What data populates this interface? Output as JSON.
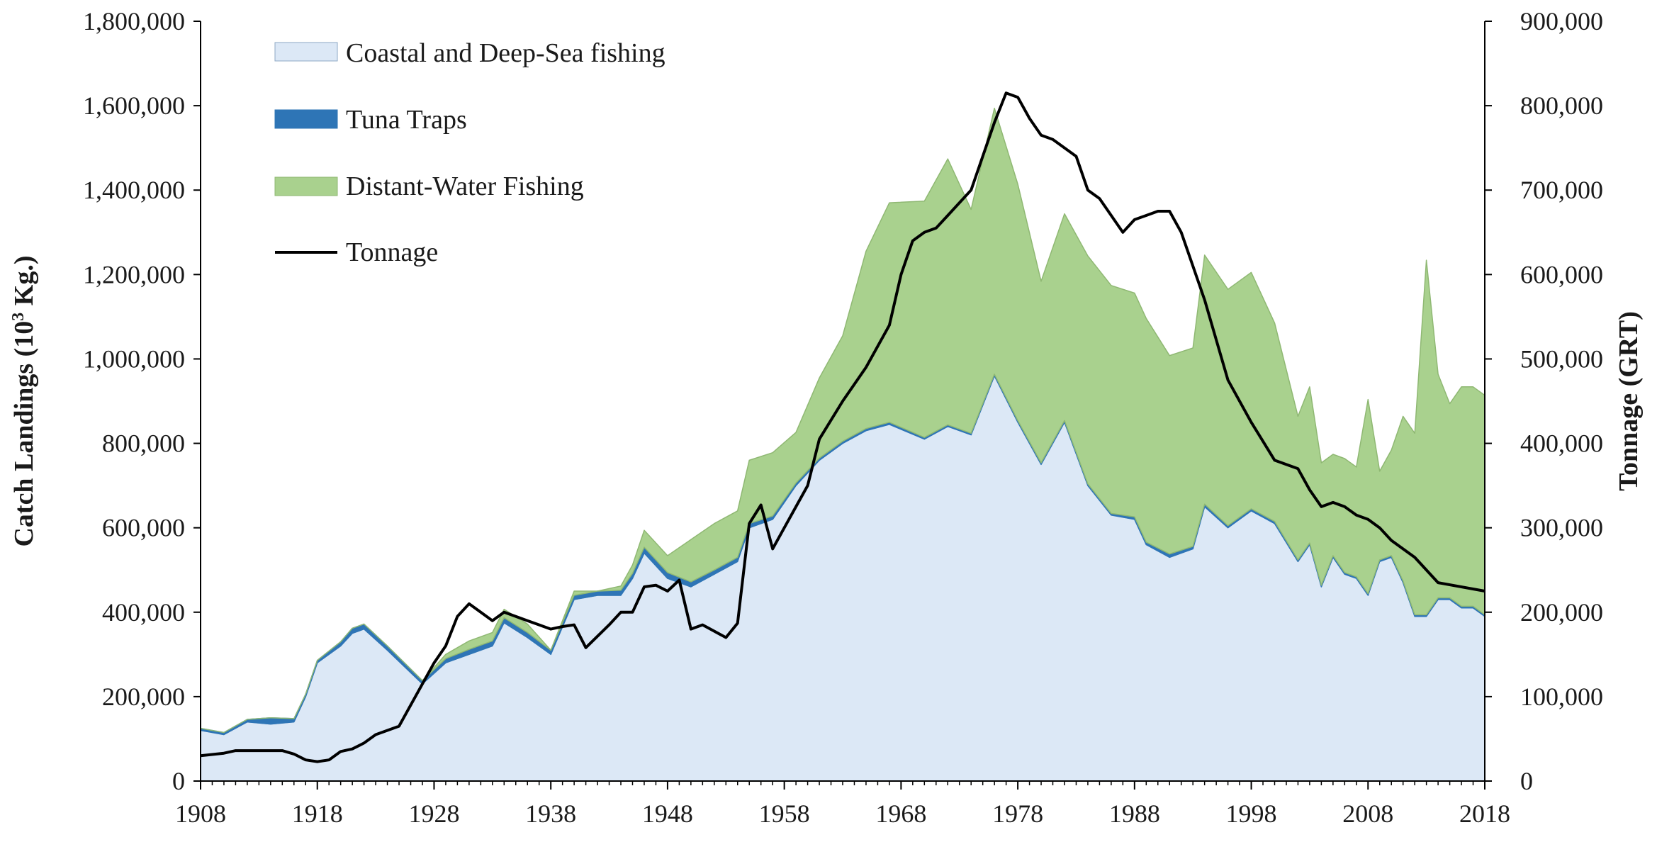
{
  "chart_data": {
    "type": "area",
    "title": "",
    "xlabel": "",
    "ylabel": "Catch Landings (10³ Kg.)",
    "ylabel_base": "Catch Landings (10",
    "ylabel_sup": "3",
    "ylabel_tail": " Kg.)",
    "y2label": "Tonnage (GRT)",
    "xlim": [
      1908,
      2018
    ],
    "ylim": [
      0,
      1800000
    ],
    "y2lim": [
      0,
      900000
    ],
    "x_ticks": [
      1908,
      1918,
      1928,
      1938,
      1948,
      1958,
      1968,
      1978,
      1988,
      1998,
      2008,
      2018
    ],
    "y_ticks": [
      0,
      200000,
      400000,
      600000,
      800000,
      1000000,
      1200000,
      1400000,
      1600000,
      1800000
    ],
    "y2_ticks": [
      0,
      100000,
      200000,
      300000,
      400000,
      500000,
      600000,
      700000,
      800000,
      900000
    ],
    "legend": [
      "Coastal and Deep-Sea fishing",
      "Tuna Traps",
      "Distant-Water Fishing",
      "Tonnage"
    ],
    "legend_position": "top-left",
    "colors": {
      "coastal": "#dce8f6",
      "coastal_edge": "#8ea8c4",
      "tuna": "#2e75b6",
      "distant": "#a9d18e",
      "distant_edge": "#8fb873",
      "tonnage": "#000000",
      "axis": "#000000"
    },
    "series": [
      {
        "name": "Coastal and Deep-Sea fishing",
        "kind": "stacked-area",
        "x": [
          1908,
          1910,
          1912,
          1914,
          1916,
          1917,
          1918,
          1919,
          1920,
          1921,
          1922,
          1924,
          1927,
          1929,
          1931,
          1933,
          1934,
          1936,
          1938,
          1940,
          1942,
          1944,
          1945,
          1946,
          1948,
          1950,
          1952,
          1954,
          1955,
          1957,
          1959,
          1961,
          1963,
          1965,
          1967,
          1970,
          1972,
          1974,
          1976,
          1978,
          1980,
          1982,
          1984,
          1986,
          1988,
          1989,
          1991,
          1993,
          1994,
          1996,
          1998,
          2000,
          2002,
          2003,
          2004,
          2005,
          2006,
          2007,
          2008,
          2009,
          2010,
          2011,
          2012,
          2013,
          2014,
          2015,
          2016,
          2017,
          2018
        ],
        "values": [
          120000,
          110000,
          140000,
          135000,
          140000,
          200000,
          280000,
          300000,
          320000,
          350000,
          360000,
          310000,
          230000,
          280000,
          300000,
          320000,
          375000,
          340000,
          300000,
          430000,
          440000,
          440000,
          480000,
          540000,
          480000,
          460000,
          490000,
          520000,
          600000,
          620000,
          700000,
          760000,
          800000,
          830000,
          845000,
          810000,
          840000,
          820000,
          960000,
          850000,
          750000,
          850000,
          700000,
          630000,
          620000,
          560000,
          530000,
          550000,
          650000,
          600000,
          640000,
          610000,
          520000,
          560000,
          460000,
          530000,
          490000,
          480000,
          440000,
          520000,
          530000,
          470000,
          390000,
          390000,
          430000,
          430000,
          410000,
          410000,
          390000
        ]
      },
      {
        "name": "Tuna Traps",
        "kind": "stacked-area",
        "x": [
          1908,
          1910,
          1912,
          1914,
          1916,
          1917,
          1918,
          1919,
          1920,
          1921,
          1922,
          1924,
          1927,
          1929,
          1931,
          1933,
          1934,
          1936,
          1938,
          1940,
          1942,
          1944,
          1945,
          1946,
          1948,
          1950,
          1952,
          1954,
          1955,
          1957,
          1959,
          1961,
          1963,
          1965,
          1967,
          1970,
          1972,
          1974,
          1976,
          1978,
          1980,
          1982,
          1984,
          1986,
          1988,
          1989,
          1991,
          1993,
          1994,
          1996,
          1998,
          2000,
          2002,
          2003,
          2004,
          2005,
          2006,
          2007,
          2008,
          2009,
          2010,
          2011,
          2012,
          2013,
          2014,
          2015,
          2016,
          2017,
          2018
        ],
        "values": [
          5000,
          5000,
          6000,
          15000,
          8000,
          6000,
          6000,
          8000,
          10000,
          12000,
          12000,
          10000,
          8000,
          10000,
          12000,
          12000,
          12000,
          12000,
          10000,
          10000,
          10000,
          12000,
          12000,
          14000,
          14000,
          12000,
          10000,
          10000,
          10000,
          8000,
          6000,
          5000,
          5000,
          5000,
          5000,
          4000,
          4000,
          4000,
          4000,
          4000,
          4000,
          4000,
          4000,
          4000,
          6000,
          6000,
          8000,
          6000,
          6000,
          5000,
          5000,
          5000,
          4000,
          4000,
          4000,
          4000,
          4000,
          4000,
          4000,
          4000,
          4000,
          4000,
          4000,
          4000,
          4000,
          4000,
          4000,
          4000,
          4000
        ]
      },
      {
        "name": "Distant-Water Fishing",
        "kind": "stacked-area",
        "x": [
          1908,
          1910,
          1912,
          1914,
          1916,
          1917,
          1918,
          1919,
          1920,
          1921,
          1922,
          1924,
          1927,
          1929,
          1931,
          1933,
          1934,
          1936,
          1938,
          1940,
          1942,
          1944,
          1945,
          1946,
          1948,
          1950,
          1952,
          1954,
          1955,
          1957,
          1959,
          1961,
          1963,
          1965,
          1967,
          1970,
          1972,
          1974,
          1976,
          1978,
          1980,
          1982,
          1984,
          1986,
          1988,
          1989,
          1991,
          1993,
          1994,
          1996,
          1998,
          2000,
          2002,
          2003,
          2004,
          2005,
          2006,
          2007,
          2008,
          2009,
          2010,
          2011,
          2012,
          2013,
          2014,
          2015,
          2016,
          2017,
          2018
        ],
        "values": [
          0,
          0,
          0,
          0,
          0,
          0,
          0,
          0,
          0,
          0,
          0,
          0,
          0,
          10000,
          20000,
          20000,
          20000,
          20000,
          0,
          10000,
          0,
          10000,
          20000,
          40000,
          40000,
          100000,
          110000,
          110000,
          150000,
          150000,
          120000,
          190000,
          250000,
          420000,
          520000,
          560000,
          630000,
          530000,
          630000,
          560000,
          430000,
          490000,
          540000,
          540000,
          530000,
          530000,
          470000,
          470000,
          590000,
          560000,
          560000,
          470000,
          340000,
          370000,
          290000,
          240000,
          270000,
          260000,
          460000,
          210000,
          250000,
          390000,
          430000,
          840000,
          530000,
          460000,
          520000,
          520000,
          520000
        ]
      },
      {
        "name": "Tonnage",
        "kind": "line",
        "axis": "right",
        "x": [
          1908,
          1910,
          1911,
          1915,
          1916,
          1917,
          1918,
          1919,
          1920,
          1921,
          1922,
          1923,
          1925,
          1928,
          1929,
          1930,
          1931,
          1932,
          1933,
          1934,
          1935,
          1936,
          1937,
          1938,
          1939,
          1940,
          1941,
          1943,
          1944,
          1945,
          1946,
          1947,
          1948,
          1949,
          1950,
          1951,
          1953,
          1954,
          1955,
          1956,
          1957,
          1958,
          1959,
          1960,
          1961,
          1963,
          1965,
          1967,
          1968,
          1969,
          1970,
          1971,
          1972,
          1974,
          1976,
          1977,
          1978,
          1979,
          1980,
          1981,
          1983,
          1984,
          1985,
          1986,
          1987,
          1988,
          1989,
          1990,
          1991,
          1992,
          1994,
          1996,
          1998,
          2000,
          2002,
          2003,
          2004,
          2005,
          2006,
          2007,
          2008,
          2009,
          2010,
          2012,
          2014,
          2018
        ],
        "values": [
          30000,
          33000,
          36000,
          36000,
          32000,
          25000,
          23000,
          25000,
          35000,
          38000,
          45000,
          55000,
          65000,
          140000,
          160000,
          195000,
          210000,
          200000,
          190000,
          200000,
          195000,
          190000,
          185000,
          180000,
          183000,
          185000,
          158000,
          185000,
          200000,
          200000,
          230000,
          232000,
          225000,
          238000,
          180000,
          185000,
          170000,
          187000,
          305000,
          327000,
          275000,
          300000,
          325000,
          350000,
          405000,
          450000,
          490000,
          540000,
          600000,
          640000,
          650000,
          655000,
          670000,
          700000,
          780000,
          815000,
          810000,
          785000,
          765000,
          760000,
          740000,
          700000,
          690000,
          670000,
          650000,
          665000,
          670000,
          675000,
          675000,
          650000,
          570000,
          475000,
          425000,
          380000,
          370000,
          345000,
          325000,
          330000,
          325000,
          315000,
          310000,
          300000,
          285000,
          265000,
          235000,
          225000
        ]
      }
    ]
  }
}
